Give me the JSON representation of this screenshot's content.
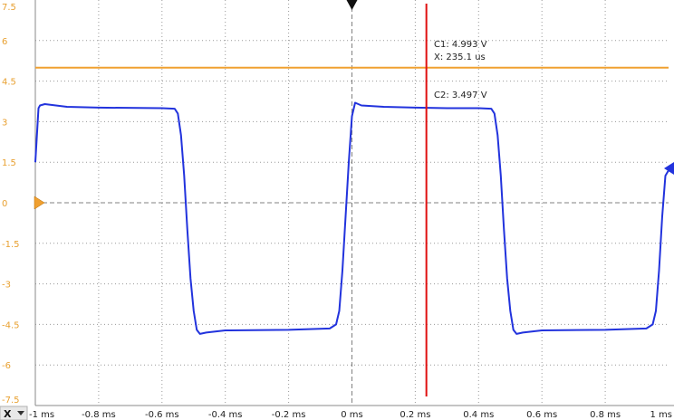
{
  "colors": {
    "ch1": "#f0a030",
    "ch2": "#2233dd",
    "cursor": "#e01010",
    "grid": "#9a9a9a",
    "frame": "#888888",
    "ylabel": "#e8a030",
    "trigger": "#111111"
  },
  "x_axis": {
    "corner_label": "X",
    "ticks": [
      "-1 ms",
      "-0.8 ms",
      "-0.6 ms",
      "-0.4 ms",
      "-0.2 ms",
      "0 ms",
      "0.2 ms",
      "0.4 ms",
      "0.6 ms",
      "0.8 ms",
      "1 ms"
    ]
  },
  "y_axis": {
    "ticks": [
      "7.5",
      "6",
      "4.5",
      "3",
      "1.5",
      "0",
      "-1.5",
      "-3",
      "-4.5",
      "-6",
      "-7.5"
    ]
  },
  "cursor": {
    "c1_readout": "C1: 4.993 V",
    "x_readout": "X: 235.1 us",
    "c2_readout": "C2: 3.497 V"
  },
  "chart_data": {
    "type": "line",
    "xlabel": "",
    "ylabel": "",
    "xlim_ms": [
      -1,
      1
    ],
    "ylim_V": [
      -7.5,
      7.5
    ],
    "grid": true,
    "cursor_x_ms": 0.2351,
    "trigger_x_ms": 0,
    "series": [
      {
        "x": [
          -1,
          1
        ],
        "y": [
          5.0,
          5.0
        ]
      },
      {
        "x": [
          -1.0,
          -0.99,
          -0.985,
          -0.97,
          -0.9,
          -0.8,
          -0.6,
          -0.56,
          -0.55,
          -0.54,
          -0.53,
          -0.52,
          -0.51,
          -0.5,
          -0.49,
          -0.48,
          -0.46,
          -0.4,
          -0.2,
          -0.07,
          -0.05,
          -0.04,
          -0.03,
          -0.02,
          -0.01,
          0.0,
          0.01,
          0.03,
          0.1,
          0.2,
          0.3,
          0.4,
          0.44,
          0.45,
          0.46,
          0.47,
          0.48,
          0.49,
          0.5,
          0.51,
          0.52,
          0.54,
          0.6,
          0.8,
          0.93,
          0.95,
          0.96,
          0.97,
          0.98,
          0.99,
          1.0
        ],
        "y": [
          1.5,
          3.5,
          3.6,
          3.65,
          3.55,
          3.52,
          3.5,
          3.48,
          3.3,
          2.5,
          1.0,
          -1.0,
          -2.8,
          -4.0,
          -4.7,
          -4.85,
          -4.8,
          -4.72,
          -4.7,
          -4.65,
          -4.5,
          -4.0,
          -2.5,
          -0.5,
          1.5,
          3.2,
          3.7,
          3.6,
          3.55,
          3.52,
          3.5,
          3.5,
          3.48,
          3.3,
          2.5,
          1.0,
          -1.0,
          -2.8,
          -4.0,
          -4.7,
          -4.85,
          -4.8,
          -4.72,
          -4.7,
          -4.65,
          -4.5,
          -4.0,
          -2.5,
          -0.5,
          1.0,
          1.2
        ]
      }
    ]
  }
}
